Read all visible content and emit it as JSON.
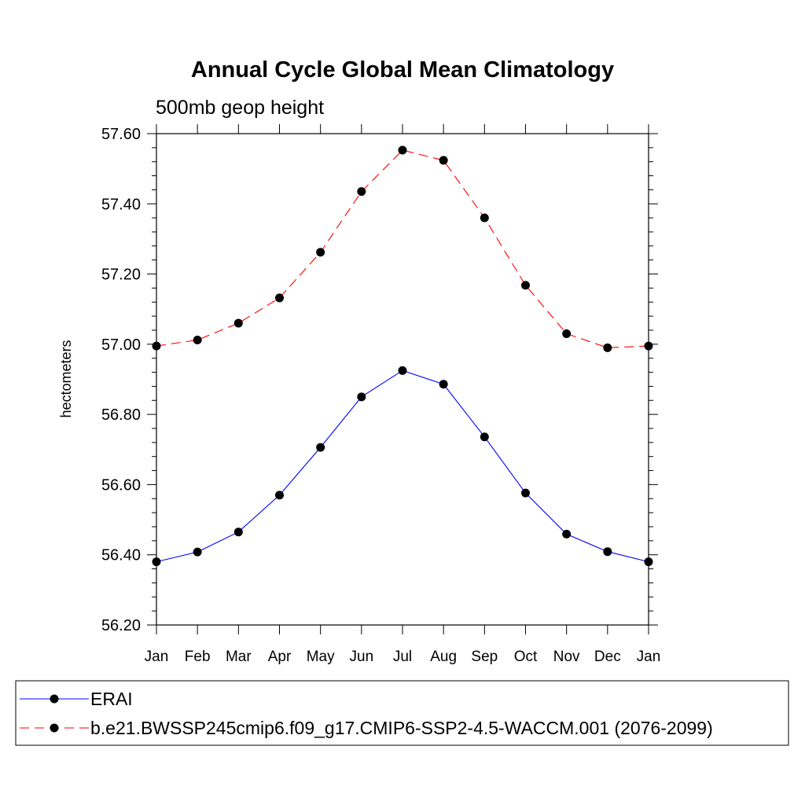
{
  "chart_data": {
    "type": "line",
    "title": "Annual Cycle Global Mean Climatology",
    "subtitle": "500mb geop height",
    "xlabel": "",
    "ylabel": "hectometers",
    "categories": [
      "Jan",
      "Feb",
      "Mar",
      "Apr",
      "May",
      "Jun",
      "Jul",
      "Aug",
      "Sep",
      "Oct",
      "Nov",
      "Dec",
      "Jan"
    ],
    "ylim": [
      56.2,
      57.6
    ],
    "yticks": [
      "56.20",
      "56.40",
      "56.60",
      "56.80",
      "57.00",
      "57.20",
      "57.40",
      "57.60"
    ],
    "grid": false,
    "legend_placement": "bottom",
    "series": [
      {
        "name": "ERAI",
        "color": "#0000ff",
        "dash": "solid",
        "values": [
          56.38,
          56.408,
          56.465,
          56.57,
          56.706,
          56.85,
          56.925,
          56.886,
          56.736,
          56.576,
          56.459,
          56.409,
          56.38
        ]
      },
      {
        "name": "b.e21.BWSSP245cmip6.f09_g17.CMIP6-SSP2-4.5-WACCM.001 (2076-2099)",
        "color": "#ff0000",
        "dash": "dashed",
        "values": [
          56.995,
          57.012,
          57.06,
          57.132,
          57.262,
          57.435,
          57.553,
          57.524,
          57.36,
          57.168,
          57.03,
          56.99,
          56.995
        ]
      }
    ]
  }
}
